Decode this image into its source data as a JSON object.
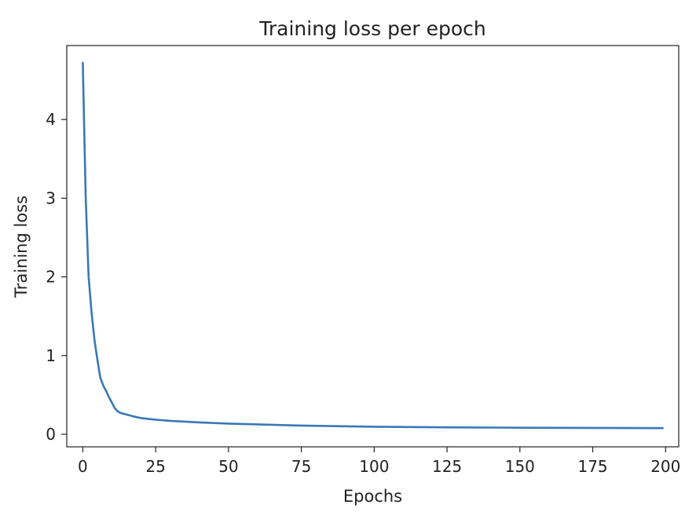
{
  "chart_data": {
    "type": "line",
    "title": "Training loss per epoch",
    "xlabel": "Epochs",
    "ylabel": "Training loss",
    "xlim": [
      -5.5,
      204.5
    ],
    "ylim": [
      -0.16,
      4.94
    ],
    "xticks": [
      0,
      25,
      50,
      75,
      100,
      125,
      150,
      175,
      200
    ],
    "yticks": [
      0,
      1,
      2,
      3,
      4
    ],
    "grid": false,
    "legend": "none",
    "series": [
      {
        "color": "#3a78b5",
        "x": [
          0,
          1,
          2,
          3,
          4,
          5,
          6,
          7,
          8,
          9,
          10,
          11,
          12,
          13,
          14,
          15,
          17,
          20,
          25,
          30,
          40,
          50,
          60,
          75,
          100,
          125,
          150,
          175,
          199
        ],
        "y": [
          4.72,
          3.0,
          2.0,
          1.55,
          1.2,
          0.95,
          0.72,
          0.62,
          0.55,
          0.47,
          0.4,
          0.33,
          0.29,
          0.27,
          0.26,
          0.25,
          0.23,
          0.205,
          0.185,
          0.17,
          0.15,
          0.135,
          0.125,
          0.11,
          0.095,
          0.088,
          0.083,
          0.08,
          0.078
        ]
      }
    ]
  }
}
